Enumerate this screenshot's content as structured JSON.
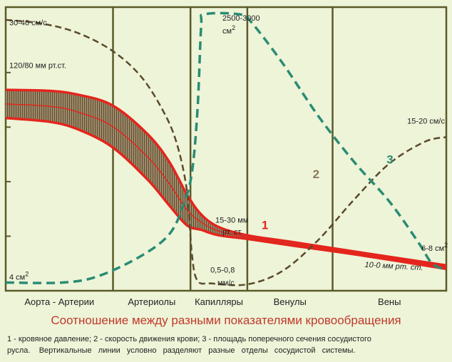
{
  "title": "Соотношение между разными показателями кровообращения",
  "caption_line1": "1 - кровяное давление; 2 - скорость движения крови; 3 - площадь поперечного сечения сосудистого",
  "caption_line2": "русла.    Вертикальные   линии   условно   разделяют   разные   отделы   сосудистой   системы.",
  "colors": {
    "pressure": "#e4251d",
    "velocity": "#5a4a2a",
    "area": "#2a8c74",
    "frame": "#5a5a2a",
    "title": "#c0392b"
  },
  "chart_data": {
    "type": "line",
    "x_scale": "categorical sections of vascular system",
    "categories": [
      "Аорта - Артерии",
      "Артериолы",
      "Капилляры",
      "Венулы",
      "Вены"
    ],
    "section_bounds": [
      0,
      1.51,
      2.6,
      3.4,
      4.6,
      6.2
    ],
    "series": [
      {
        "number": "1",
        "role": "pressure",
        "style": "solid band",
        "upper": [
          [
            0,
            11.05
          ],
          [
            0.6,
            11.0
          ],
          [
            1.0,
            10.8
          ],
          [
            1.5,
            10.2
          ],
          [
            2.0,
            8.6
          ],
          [
            2.3,
            7.1
          ],
          [
            2.55,
            5.3
          ],
          [
            2.75,
            4.2
          ],
          [
            3.0,
            3.5
          ],
          [
            3.4,
            3.05
          ],
          [
            4.0,
            2.7
          ],
          [
            5.0,
            2.1
          ],
          [
            6.2,
            1.4
          ]
        ],
        "lower": [
          [
            0,
            9.5
          ],
          [
            0.6,
            9.3
          ],
          [
            1.0,
            8.9
          ],
          [
            1.5,
            7.9
          ],
          [
            2.0,
            6.1
          ],
          [
            2.3,
            4.7
          ],
          [
            2.55,
            3.6
          ],
          [
            2.75,
            3.35
          ],
          [
            3.0,
            3.05
          ],
          [
            3.4,
            2.85
          ],
          [
            4.0,
            2.5
          ],
          [
            5.0,
            1.95
          ],
          [
            6.2,
            1.2
          ]
        ]
      },
      {
        "number": "2",
        "role": "velocity",
        "style": "dashed",
        "points": [
          [
            0,
            14.9
          ],
          [
            0.5,
            14.7
          ],
          [
            1.0,
            14.2
          ],
          [
            1.5,
            13.2
          ],
          [
            1.9,
            11.8
          ],
          [
            2.2,
            10.0
          ],
          [
            2.4,
            8.2
          ],
          [
            2.55,
            5.5
          ],
          [
            2.62,
            2.0
          ],
          [
            2.7,
            0.55
          ],
          [
            2.9,
            0.4
          ],
          [
            3.4,
            0.35
          ],
          [
            3.9,
            1.1
          ],
          [
            4.4,
            2.8
          ],
          [
            4.9,
            5.0
          ],
          [
            5.4,
            7.0
          ],
          [
            5.9,
            8.2
          ],
          [
            6.2,
            8.45
          ]
        ]
      },
      {
        "number": "3",
        "role": "area",
        "style": "dashed",
        "points": [
          [
            0,
            0.45
          ],
          [
            0.8,
            0.45
          ],
          [
            1.3,
            0.8
          ],
          [
            1.9,
            1.9
          ],
          [
            2.3,
            3.1
          ],
          [
            2.5,
            4.7
          ],
          [
            2.62,
            6.5
          ],
          [
            2.7,
            10.0
          ],
          [
            2.75,
            14.5
          ],
          [
            2.8,
            15.2
          ],
          [
            3.3,
            15.2
          ],
          [
            3.45,
            14.8
          ],
          [
            3.9,
            12.5
          ],
          [
            4.4,
            9.6
          ],
          [
            4.9,
            7.1
          ],
          [
            5.4,
            4.9
          ],
          [
            5.8,
            2.7
          ],
          [
            6.0,
            1.5
          ],
          [
            6.2,
            1.15
          ]
        ]
      }
    ],
    "annotations": [
      {
        "text": "30-40 см/с",
        "x": 0.05,
        "y": 14.6
      },
      {
        "text": "120/80 мм рт.ст.",
        "x": 0.05,
        "y": 12.25
      },
      {
        "text": "4 см",
        "sup": "2",
        "x": 0.05,
        "y": 0.6
      },
      {
        "text": "2500-3000",
        "x": 3.05,
        "y": 14.85
      },
      {
        "text": "см",
        "sup": "2",
        "x": 3.05,
        "y": 14.15
      },
      {
        "text": "15-30 мм",
        "x": 2.95,
        "y": 3.75
      },
      {
        "text": "рт. ст.",
        "x": 3.05,
        "y": 3.1
      },
      {
        "text": "0,5-0,8",
        "x": 2.88,
        "y": 1.0
      },
      {
        "text": "мм/с",
        "x": 2.98,
        "y": 0.3
      },
      {
        "text": "10-0 мм рт. ст.",
        "x": 5.05,
        "y": 1.3
      },
      {
        "text": "15-20 см/с",
        "x": 5.65,
        "y": 9.2
      },
      {
        "text": "6-8 см",
        "sup": "2",
        "x": 5.85,
        "y": 2.2
      }
    ],
    "ylim": [
      0,
      15.6
    ],
    "xlim": [
      0,
      6.2
    ],
    "yticks": [
      12,
      9,
      6,
      3
    ],
    "grid": false
  }
}
